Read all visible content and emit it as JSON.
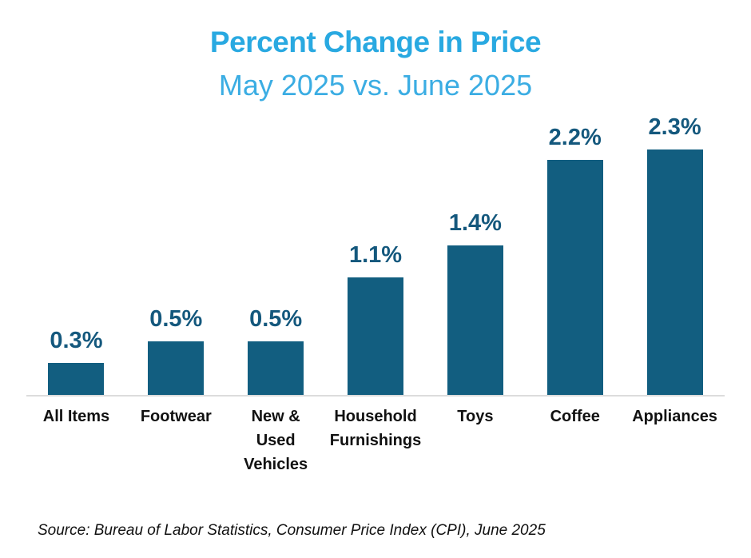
{
  "header": {
    "title": "Percent Change in Price",
    "subtitle": "May 2025 vs. June 2025",
    "title_color": "#29A9E1",
    "subtitle_color": "#3BADE3"
  },
  "chart_data": {
    "type": "bar",
    "title": "Percent Change in Price",
    "subtitle": "May 2025 vs. June 2025",
    "categories": [
      "All Items",
      "Footwear",
      "New &\nUsed\nVehicles",
      "Household\nFurnishings",
      "Toys",
      "Coffee",
      "Appliances"
    ],
    "values": [
      0.3,
      0.5,
      0.5,
      1.1,
      1.4,
      2.2,
      2.3
    ],
    "data_labels": [
      "0.3%",
      "0.5%",
      "0.5%",
      "1.1%",
      "1.4%",
      "2.2%",
      "2.3%"
    ],
    "unit": "percent change",
    "xlabel": "",
    "ylabel": "",
    "ylim": [
      0,
      2.5
    ],
    "grid": false,
    "legend": false,
    "y_axis_shown": false,
    "bar_color": "#125E80",
    "data_label_color": "#14587D",
    "baseline_color": "#DCDCDC"
  },
  "footer": {
    "source": "Source: Bureau of Labor Statistics, Consumer Price Index (CPI), June 2025"
  }
}
